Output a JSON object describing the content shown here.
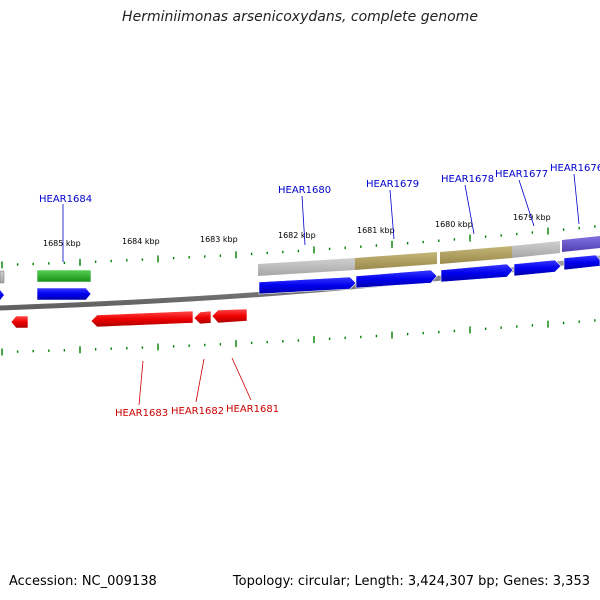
{
  "title": "Herminiimonas arsenicoxydans, complete genome",
  "footer": {
    "accession": "Accession: NC_009138",
    "topology": "Topology: circular; Length: 3,424,307 bp; Genes: 3,353"
  },
  "scale_labels": [
    "1685 kbp",
    "1684 kbp",
    "1683 kbp",
    "1682 kbp",
    "1681 kbp",
    "1680 kbp",
    "1679 kbp"
  ],
  "forward_genes": [
    "HEAR1684",
    "HEAR1680",
    "HEAR1679",
    "HEAR1678",
    "HEAR1677",
    "HEAR1676"
  ],
  "reverse_genes": [
    "HEAR1683",
    "HEAR1682",
    "HEAR1681"
  ],
  "colors": {
    "forward_gene": "#0000ff",
    "reverse_gene": "#ff0000",
    "forward_label": "#0000cc",
    "reverse_label": "#cc0000",
    "tick": "#008000",
    "backbone": "#808080",
    "green_feature": "#22b022",
    "gray_feature": "#b8b8b8",
    "olive_feature": "#b0a060",
    "purple_feature": "#6a5acd"
  }
}
